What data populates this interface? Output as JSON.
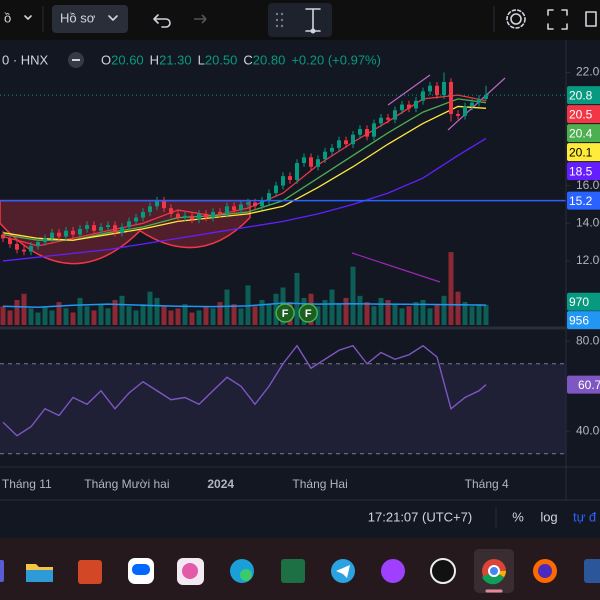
{
  "toolbar": {
    "left_fragment": "ồ",
    "profile": "Hồ sơ"
  },
  "status_bar": {
    "time": "17:21:07 (UTC+7)",
    "percent": "%",
    "log": "log",
    "auto": "tự đ"
  },
  "chart_data": {
    "type": "candlestick",
    "symbol": "0 · HNX",
    "legend": [
      {
        "key": "O",
        "value": "20.60"
      },
      {
        "key": "H",
        "value": "21.30"
      },
      {
        "key": "L",
        "value": "20.50"
      },
      {
        "key": "C",
        "value": "20.80"
      }
    ],
    "change": "+0.20 (+0.97%)",
    "up_color": "#089981",
    "down_color": "#f23645",
    "ylim": [
      8.6,
      22.4
    ],
    "yticks": [
      {
        "value": 22,
        "label": "22.00"
      },
      {
        "value": 16,
        "label": "16.00"
      },
      {
        "value": 14,
        "label": "14.00"
      },
      {
        "value": 12,
        "label": "12.00"
      }
    ],
    "xticks": [
      {
        "value": 3.4,
        "label": "Tháng 11"
      },
      {
        "value": 17.7,
        "label": "Tháng Mười hai"
      },
      {
        "value": 31.1,
        "label": "2024"
      },
      {
        "value": 45.3,
        "label": "Tháng Hai"
      },
      {
        "value": 69.1,
        "label": "Tháng 4"
      }
    ],
    "candles": {
      "open": [
        13.4,
        13.2,
        12.9,
        12.6,
        12.5,
        12.8,
        13.0,
        13.2,
        13.5,
        13.3,
        13.6,
        13.4,
        13.7,
        13.9,
        13.6,
        13.8,
        13.9,
        13.5,
        13.8,
        14.1,
        14.3,
        14.6,
        14.9,
        15.2,
        14.8,
        14.5,
        14.3,
        14.4,
        14.2,
        14.5,
        14.3,
        14.6,
        14.5,
        14.9,
        14.7,
        15.0,
        15.1,
        14.9,
        15.2,
        15.6,
        16.0,
        16.5,
        16.3,
        17.2,
        17.5,
        17.0,
        17.4,
        17.8,
        18.0,
        18.4,
        18.2,
        18.7,
        19.0,
        18.6,
        19.3,
        19.6,
        19.5,
        20.0,
        20.3,
        20.1,
        20.5,
        21.0,
        21.3,
        20.8,
        21.5,
        19.8,
        19.7,
        20.2,
        20.4,
        20.6
      ],
      "high": [
        13.6,
        13.4,
        13.1,
        12.8,
        13.0,
        13.2,
        13.4,
        13.7,
        13.7,
        13.8,
        13.8,
        13.9,
        14.1,
        14.1,
        14.0,
        14.1,
        14.1,
        14.0,
        14.3,
        14.5,
        14.8,
        15.1,
        15.4,
        15.4,
        15.0,
        14.7,
        14.6,
        14.6,
        14.7,
        14.7,
        14.8,
        14.8,
        15.1,
        15.1,
        15.2,
        15.3,
        15.3,
        15.4,
        15.8,
        16.2,
        16.7,
        16.7,
        17.4,
        17.7,
        17.7,
        17.6,
        18.0,
        18.2,
        18.6,
        18.6,
        18.9,
        19.2,
        19.2,
        19.5,
        19.8,
        19.8,
        20.2,
        20.5,
        20.5,
        20.7,
        21.2,
        21.5,
        21.5,
        22.0,
        21.7,
        20.0,
        20.4,
        20.6,
        20.8,
        21.3
      ],
      "low": [
        13.0,
        12.7,
        12.4,
        12.3,
        12.3,
        12.6,
        12.8,
        13.0,
        13.1,
        13.1,
        13.2,
        13.2,
        13.5,
        13.4,
        13.4,
        13.6,
        13.3,
        13.3,
        13.6,
        13.9,
        14.1,
        14.4,
        14.7,
        14.6,
        14.3,
        14.1,
        14.1,
        14.0,
        14.0,
        14.1,
        14.1,
        14.3,
        14.3,
        14.5,
        14.5,
        14.8,
        14.7,
        14.7,
        15.0,
        15.4,
        15.8,
        16.1,
        16.1,
        17.0,
        16.8,
        16.8,
        17.2,
        17.6,
        17.8,
        18.0,
        18.0,
        18.5,
        18.4,
        18.4,
        19.1,
        19.3,
        19.3,
        19.8,
        19.9,
        19.9,
        20.3,
        20.8,
        20.6,
        20.6,
        19.4,
        19.5,
        19.5,
        20.0,
        20.2,
        20.5
      ],
      "close": [
        13.2,
        12.9,
        12.6,
        12.5,
        12.8,
        13.0,
        13.2,
        13.5,
        13.3,
        13.6,
        13.4,
        13.7,
        13.9,
        13.6,
        13.8,
        13.9,
        13.5,
        13.8,
        14.1,
        14.3,
        14.6,
        14.9,
        15.2,
        14.8,
        14.5,
        14.3,
        14.4,
        14.2,
        14.5,
        14.3,
        14.6,
        14.5,
        14.9,
        14.7,
        15.0,
        15.1,
        14.9,
        15.2,
        15.6,
        16.0,
        16.5,
        16.3,
        17.2,
        17.5,
        17.0,
        17.4,
        17.8,
        18.0,
        18.4,
        18.2,
        18.7,
        19.0,
        18.6,
        19.3,
        19.6,
        19.5,
        20.0,
        20.3,
        20.1,
        20.5,
        21.0,
        21.3,
        20.8,
        21.5,
        19.8,
        19.7,
        20.2,
        20.4,
        20.6,
        20.8
      ],
      "volume": [
        900,
        700,
        1200,
        1500,
        800,
        600,
        900,
        700,
        1100,
        800,
        600,
        1300,
        900,
        700,
        1000,
        800,
        1200,
        1400,
        900,
        700,
        1000,
        1600,
        1300,
        900,
        700,
        800,
        1000,
        600,
        700,
        900,
        800,
        1100,
        1700,
        1000,
        800,
        1900,
        900,
        1200,
        1000,
        1500,
        1800,
        1100,
        2500,
        1300,
        1500,
        900,
        1200,
        1700,
        1000,
        1300,
        2800,
        1400,
        1100,
        900,
        1300,
        1200,
        1000,
        800,
        900,
        1100,
        1200,
        800,
        1000,
        1400,
        3500,
        1600,
        1100,
        900,
        1000,
        970
      ]
    },
    "vlim": [
      0,
      3600
    ],
    "ma_lines": [
      {
        "color": "#f23645",
        "index": [
          0,
          5,
          10,
          15,
          20,
          25,
          30,
          35,
          40,
          45,
          50,
          55,
          60,
          65,
          69
        ],
        "values": [
          13.3,
          12.8,
          13.2,
          13.6,
          14.0,
          14.7,
          14.4,
          14.8,
          15.6,
          17.1,
          18.3,
          19.4,
          20.6,
          20.8,
          20.5
        ]
      },
      {
        "color": "#4caf50",
        "index": [
          0,
          5,
          10,
          15,
          20,
          25,
          30,
          35,
          40,
          45,
          50,
          55,
          60,
          65,
          69
        ],
        "values": [
          13.4,
          13.1,
          13.1,
          13.5,
          13.8,
          14.3,
          14.4,
          14.6,
          15.2,
          16.4,
          17.6,
          18.8,
          19.9,
          20.6,
          20.4
        ]
      },
      {
        "color": "#ffeb3b",
        "index": [
          0,
          5,
          10,
          15,
          20,
          25,
          30,
          35,
          40,
          45,
          50,
          55,
          60,
          65,
          69
        ],
        "values": [
          13.5,
          13.2,
          13.1,
          13.4,
          13.7,
          14.1,
          14.3,
          14.5,
          14.9,
          15.9,
          17.0,
          18.2,
          19.3,
          20.2,
          20.1
        ]
      },
      {
        "color": "#651fff",
        "index": [
          0,
          5,
          10,
          15,
          20,
          25,
          30,
          35,
          40,
          45,
          50,
          55,
          60,
          65,
          69
        ],
        "values": [
          12.0,
          12.2,
          12.4,
          12.6,
          12.9,
          13.2,
          13.5,
          13.8,
          14.1,
          14.5,
          15.0,
          15.6,
          16.4,
          17.6,
          18.5
        ]
      }
    ],
    "hline": {
      "value": 15.2,
      "color": "#2962ff"
    },
    "volume_ma": {
      "color": "#2196f3",
      "index": [
        0,
        5,
        10,
        15,
        20,
        25,
        30,
        35,
        40,
        45,
        50,
        55,
        60,
        65,
        69
      ],
      "values": [
        900,
        850,
        950,
        1000,
        950,
        900,
        880,
        920,
        1050,
        1000,
        1020,
        1000,
        990,
        970,
        956
      ]
    },
    "markers": [
      {
        "index": 40.3,
        "label": "F"
      },
      {
        "index": 43.6,
        "label": "F"
      }
    ],
    "rsi": {
      "color": "#7e57c2",
      "ylim": [
        25,
        85
      ],
      "yticks": [
        {
          "value": 80,
          "label": "80.00"
        },
        {
          "value": 40,
          "label": "40.00"
        }
      ],
      "bands": [
        70,
        30
      ],
      "index": [
        0,
        2,
        4,
        6,
        8,
        10,
        12,
        14,
        16,
        18,
        20,
        22,
        24,
        26,
        28,
        30,
        32,
        34,
        36,
        38,
        40,
        42,
        44,
        46,
        48,
        50,
        52,
        54,
        56,
        58,
        60,
        62,
        64,
        66,
        68,
        69
      ],
      "values": [
        44,
        38,
        42,
        50,
        47,
        55,
        52,
        58,
        50,
        57,
        62,
        58,
        54,
        55,
        52,
        58,
        64,
        60,
        52,
        60,
        70,
        78,
        68,
        72,
        76,
        78,
        70,
        75,
        72,
        74,
        78,
        73,
        50,
        55,
        58,
        60.7
      ]
    }
  }
}
